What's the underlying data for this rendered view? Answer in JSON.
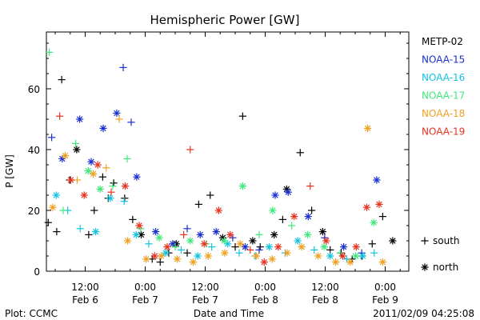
{
  "chart_data": {
    "type": "scatter",
    "title": "Hemispheric Power [GW]",
    "xlabel": "Date and Time",
    "ylabel": "P [GW]",
    "ylim": [
      0,
      80
    ],
    "xlim_hours": [
      0,
      72
    ],
    "y_ticks": [
      "0",
      "20",
      "40",
      "60"
    ],
    "x_ticks": [
      {
        "time": "12:00",
        "date": "Feb 6",
        "hour": 12
      },
      {
        "time": "0:00",
        "date": "Feb 7",
        "hour": 24
      },
      {
        "time": "12:00",
        "date": "Feb 7",
        "hour": 36
      },
      {
        "time": "0:00",
        "date": "Feb 8",
        "hour": 48
      },
      {
        "time": "12:00",
        "date": "Feb 8",
        "hour": 60
      },
      {
        "time": "0:00",
        "date": "Feb 9",
        "hour": 72
      }
    ],
    "legend": {
      "placement": "right",
      "entries": [
        {
          "name": "METP-02",
          "color": "#000000"
        },
        {
          "name": "NOAA-15",
          "color": "#1a2fd0"
        },
        {
          "name": "NOAA-16",
          "color": "#12c3e0"
        },
        {
          "name": "NOAA-17",
          "color": "#3fe87a"
        },
        {
          "name": "NOAA-18",
          "color": "#f0a020"
        },
        {
          "name": "NOAA-19",
          "color": "#e8321e"
        }
      ],
      "markers": [
        {
          "symbol": "+",
          "label": "south"
        },
        {
          "symbol": "*",
          "label": "north"
        }
      ]
    },
    "series": [
      {
        "name": "METP-02",
        "color": "#000000",
        "points": [
          [
            0.3,
            34,
            "+"
          ],
          [
            2.5,
            18,
            "*"
          ],
          [
            4.6,
            16,
            "+"
          ],
          [
            6.3,
            13,
            "+"
          ],
          [
            7.3,
            63,
            "+"
          ],
          [
            8.9,
            30,
            "+"
          ],
          [
            10.3,
            40,
            "*"
          ],
          [
            12.7,
            12,
            "+"
          ],
          [
            13.8,
            20,
            "+"
          ],
          [
            15.5,
            31,
            "+"
          ],
          [
            16.6,
            24,
            "+"
          ],
          [
            17.7,
            29,
            "+"
          ],
          [
            19.9,
            24,
            "+"
          ],
          [
            21.5,
            17,
            "+"
          ],
          [
            23.2,
            12,
            "*"
          ],
          [
            25.4,
            4,
            "+"
          ],
          [
            27.0,
            3,
            "+"
          ],
          [
            28.7,
            6,
            "+"
          ],
          [
            30.2,
            9,
            "*"
          ],
          [
            32.4,
            6,
            "+"
          ],
          [
            34.7,
            22,
            "+"
          ],
          [
            37.0,
            25,
            "+"
          ],
          [
            39.5,
            11,
            "*"
          ],
          [
            42.0,
            8,
            "+"
          ],
          [
            43.5,
            51,
            "+"
          ],
          [
            45.5,
            10,
            "*"
          ],
          [
            47.0,
            8,
            "+"
          ],
          [
            49.8,
            12,
            "*"
          ],
          [
            51.5,
            17,
            "+"
          ],
          [
            52.3,
            27,
            "*"
          ],
          [
            55.0,
            39,
            "+"
          ],
          [
            57.3,
            20,
            "+"
          ],
          [
            59.5,
            13,
            "*"
          ],
          [
            61.0,
            7,
            "+"
          ],
          [
            63.2,
            6,
            "+"
          ],
          [
            65.4,
            4,
            "+"
          ],
          [
            67.3,
            5,
            "+"
          ],
          [
            69.4,
            9,
            "+"
          ],
          [
            71.5,
            18,
            "+"
          ],
          [
            73.5,
            10,
            "*"
          ]
        ]
      },
      {
        "name": "NOAA-15",
        "color": "#1a2fd0",
        "points": [
          [
            0.3,
            42,
            "*"
          ],
          [
            2.7,
            34,
            "+"
          ],
          [
            5.3,
            44,
            "+"
          ],
          [
            7.4,
            37,
            "*"
          ],
          [
            10.9,
            50,
            "*"
          ],
          [
            13.2,
            36,
            "*"
          ],
          [
            15.6,
            47,
            "*"
          ],
          [
            18.3,
            52,
            "*"
          ],
          [
            19.6,
            67,
            "+"
          ],
          [
            21.2,
            49,
            "+"
          ],
          [
            22.3,
            31,
            "*"
          ],
          [
            26.1,
            13,
            "*"
          ],
          [
            29.5,
            9,
            "*"
          ],
          [
            32.4,
            14,
            "+"
          ],
          [
            35.0,
            12,
            "*"
          ],
          [
            38.2,
            13,
            "*"
          ],
          [
            41.5,
            11,
            "+"
          ],
          [
            44.0,
            8,
            "*"
          ],
          [
            46.8,
            7,
            "+"
          ],
          [
            50.0,
            25,
            "*"
          ],
          [
            52.6,
            26,
            "*"
          ],
          [
            56.6,
            18,
            "*"
          ],
          [
            59.9,
            11,
            "+"
          ],
          [
            63.7,
            8,
            "*"
          ],
          [
            67.3,
            6,
            "+"
          ],
          [
            70.3,
            30,
            "*"
          ]
        ]
      },
      {
        "name": "NOAA-16",
        "color": "#12c3e0",
        "points": [
          [
            0.7,
            13,
            "+"
          ],
          [
            3.0,
            12,
            "+"
          ],
          [
            4.2,
            62,
            "+"
          ],
          [
            6.2,
            25,
            "*"
          ],
          [
            8.5,
            20,
            "+"
          ],
          [
            11.0,
            14,
            "+"
          ],
          [
            14.1,
            13,
            "*"
          ],
          [
            17.0,
            24,
            "*"
          ],
          [
            19.8,
            23,
            "+"
          ],
          [
            22.2,
            12,
            "*"
          ],
          [
            24.7,
            9,
            "+"
          ],
          [
            28.1,
            6,
            "*"
          ],
          [
            31.2,
            7,
            "+"
          ],
          [
            34.5,
            5,
            "*"
          ],
          [
            37.3,
            8,
            "+"
          ],
          [
            40.5,
            9,
            "*"
          ],
          [
            42.8,
            6,
            "+"
          ],
          [
            46.0,
            5,
            "+"
          ],
          [
            48.8,
            8,
            "*"
          ],
          [
            52.0,
            6,
            "+"
          ],
          [
            54.5,
            10,
            "*"
          ],
          [
            57.8,
            7,
            "+"
          ],
          [
            61.0,
            5,
            "*"
          ],
          [
            64.3,
            4,
            "+"
          ],
          [
            67.5,
            5,
            "*"
          ],
          [
            69.8,
            6,
            "+"
          ]
        ]
      },
      {
        "name": "NOAA-17",
        "color": "#3fe87a",
        "points": [
          [
            1.9,
            24,
            "*"
          ],
          [
            4.8,
            72,
            "+"
          ],
          [
            7.6,
            20,
            "+"
          ],
          [
            10.1,
            42,
            "+"
          ],
          [
            12.6,
            33,
            "*"
          ],
          [
            15.0,
            27,
            "*"
          ],
          [
            17.5,
            28,
            "+"
          ],
          [
            20.4,
            37,
            "+"
          ],
          [
            23.1,
            14,
            "+"
          ],
          [
            26.8,
            11,
            "*"
          ],
          [
            30.0,
            8,
            "+"
          ],
          [
            33.0,
            10,
            "*"
          ],
          [
            36.2,
            9,
            "+"
          ],
          [
            39.8,
            10,
            "*"
          ],
          [
            43.5,
            28,
            "*"
          ],
          [
            46.8,
            12,
            "+"
          ],
          [
            49.5,
            20,
            "*"
          ],
          [
            53.3,
            15,
            "+"
          ],
          [
            56.5,
            12,
            "*"
          ],
          [
            59.8,
            8,
            "*"
          ],
          [
            63.0,
            6,
            "+"
          ],
          [
            66.1,
            5,
            "*"
          ],
          [
            69.7,
            16,
            "*"
          ]
        ]
      },
      {
        "name": "NOAA-18",
        "color": "#f0a020",
        "points": [
          [
            0.9,
            31,
            "*"
          ],
          [
            3.2,
            20,
            "*"
          ],
          [
            5.5,
            21,
            "*"
          ],
          [
            8.0,
            38,
            "*"
          ],
          [
            10.4,
            30,
            "+"
          ],
          [
            13.6,
            32,
            "*"
          ],
          [
            16.2,
            34,
            "+"
          ],
          [
            18.8,
            50,
            "+"
          ],
          [
            20.5,
            10,
            "*"
          ],
          [
            24.2,
            4,
            "*"
          ],
          [
            27.2,
            5,
            "*"
          ],
          [
            30.4,
            4,
            "*"
          ],
          [
            33.6,
            3,
            "*"
          ],
          [
            36.6,
            5,
            "*"
          ],
          [
            39.9,
            6,
            "*"
          ],
          [
            43.0,
            9,
            "*"
          ],
          [
            46.2,
            5,
            "*"
          ],
          [
            49.4,
            4,
            "*"
          ],
          [
            52.4,
            6,
            "*"
          ],
          [
            55.3,
            8,
            "*"
          ],
          [
            58.6,
            5,
            "*"
          ],
          [
            62.1,
            3,
            "*"
          ],
          [
            65.0,
            3,
            "*"
          ],
          [
            68.5,
            47,
            "*"
          ],
          [
            71.5,
            3,
            "*"
          ]
        ]
      },
      {
        "name": "NOAA-19",
        "color": "#e8321e",
        "points": [
          [
            1.5,
            47,
            "*"
          ],
          [
            3.6,
            20,
            "+"
          ],
          [
            6.9,
            51,
            "+"
          ],
          [
            9.1,
            30,
            "*"
          ],
          [
            11.8,
            25,
            "*"
          ],
          [
            14.5,
            35,
            "*"
          ],
          [
            17.2,
            26,
            "+"
          ],
          [
            20.0,
            28,
            "*"
          ],
          [
            22.8,
            15,
            "*"
          ],
          [
            25.9,
            5,
            "*"
          ],
          [
            28.4,
            8,
            "*"
          ],
          [
            31.7,
            12,
            "+"
          ],
          [
            33.0,
            40,
            "+"
          ],
          [
            35.8,
            9,
            "*"
          ],
          [
            38.7,
            20,
            "*"
          ],
          [
            41.0,
            12,
            "*"
          ],
          [
            45.0,
            7,
            "+"
          ],
          [
            47.8,
            3,
            "*"
          ],
          [
            50.6,
            8,
            "*"
          ],
          [
            53.8,
            18,
            "*"
          ],
          [
            57.0,
            28,
            "+"
          ],
          [
            60.2,
            10,
            "*"
          ],
          [
            63.5,
            5,
            "*"
          ],
          [
            66.2,
            8,
            "*"
          ],
          [
            68.3,
            21,
            "*"
          ],
          [
            70.8,
            22,
            "*"
          ]
        ]
      }
    ]
  },
  "footer": {
    "left": "Plot: CCMC",
    "center": "Date and Time",
    "right": "2011/02/09 04:25:08"
  }
}
